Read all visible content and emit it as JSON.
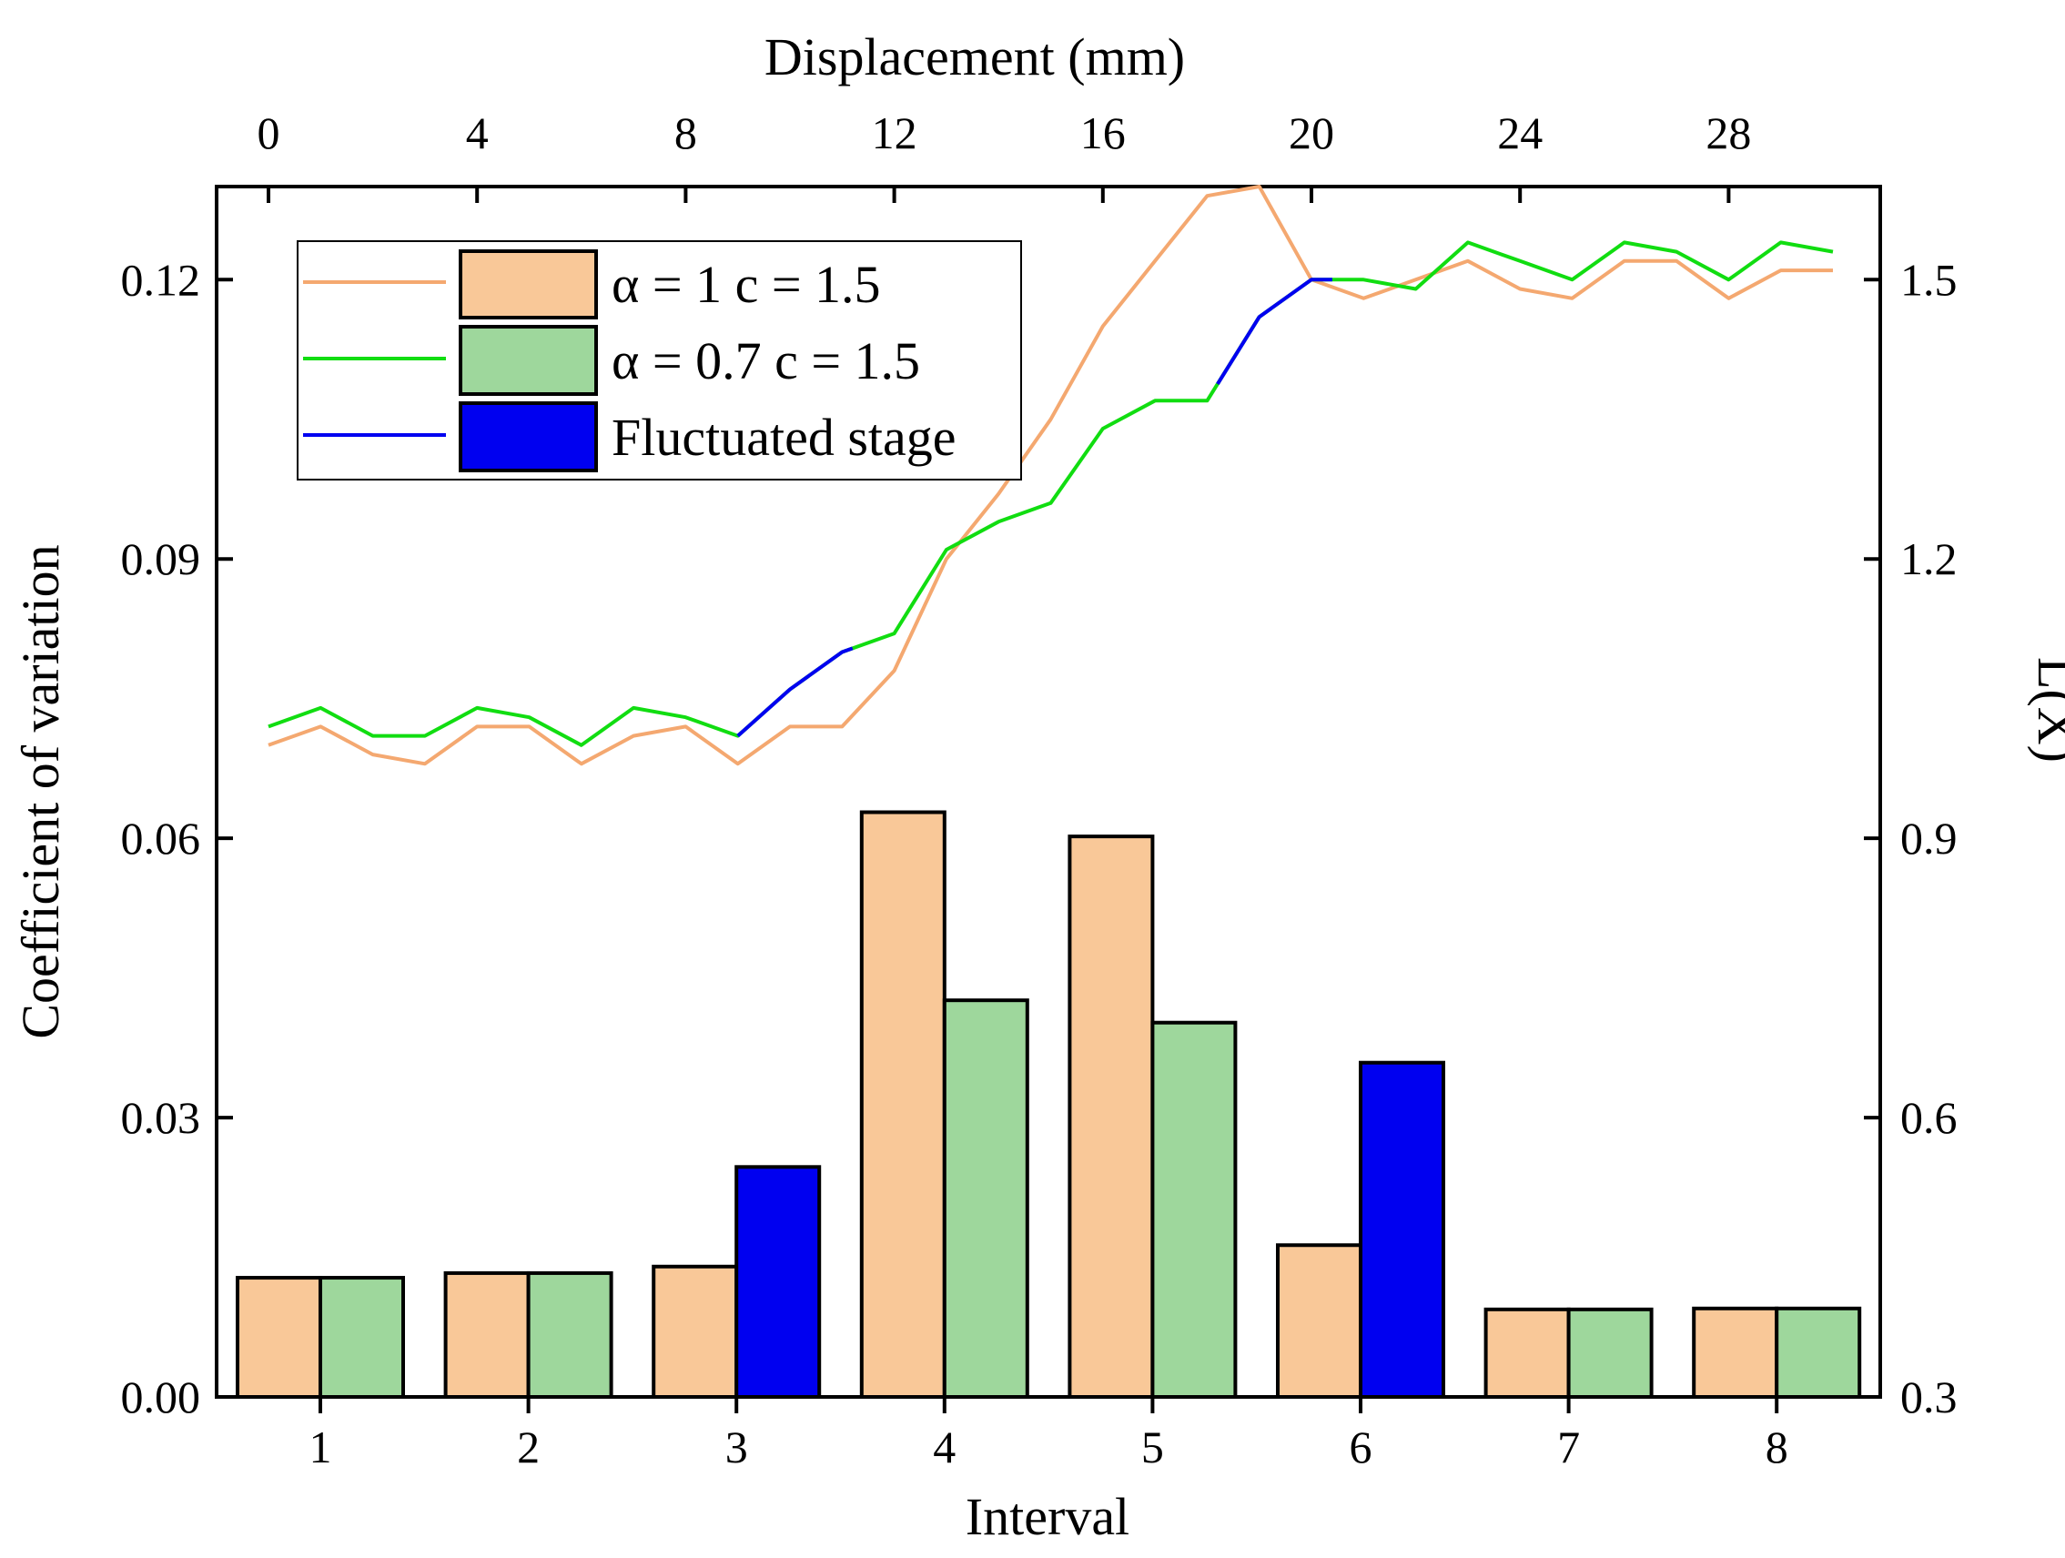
{
  "chart_data": {
    "type": "bar+line",
    "bottom_axis": {
      "label": "Interval",
      "categories": [
        "1",
        "2",
        "3",
        "4",
        "5",
        "6",
        "7",
        "8"
      ]
    },
    "top_axis": {
      "label": "Displacement (mm)",
      "range": [
        0,
        30
      ],
      "ticks": [
        "0",
        "4",
        "8",
        "12",
        "16",
        "20",
        "24",
        "28"
      ]
    },
    "left_axis": {
      "label": "Coefficient of variation",
      "range": [
        0,
        0.13
      ],
      "ticks": [
        "0.00",
        "0.03",
        "0.06",
        "0.09",
        "0.12"
      ]
    },
    "right_axis": {
      "label": "L(X)",
      "range": [
        0.3,
        1.6
      ],
      "ticks": [
        "0.3",
        "0.6",
        "0.9",
        "1.2",
        "1.5"
      ]
    },
    "bar_series": [
      {
        "name": "α = 1 c = 1.5",
        "color": "#F9C898",
        "values": [
          0.0128,
          0.0133,
          0.014,
          0.0628,
          0.0602,
          0.0163,
          0.0094,
          0.0095
        ]
      },
      {
        "name": "α = 0.7 c = 1.5",
        "color": "#9ED79C",
        "values": [
          0.0128,
          0.0133,
          0.0247,
          0.0426,
          0.0402,
          0.0359,
          0.0094,
          0.0095
        ],
        "fluctuated_intervals": [
          3,
          6
        ],
        "fluctuated_color": "#0000F0"
      }
    ],
    "line_series": [
      {
        "name": "α = 1 c = 1.5",
        "color": "#F4A870",
        "axis": "right",
        "x": [
          0,
          1,
          2,
          3,
          4,
          5,
          6,
          7,
          8,
          9,
          10,
          11,
          12,
          13,
          14,
          15,
          16,
          17,
          18,
          19,
          20,
          21,
          22,
          23,
          24,
          25,
          26,
          27,
          28,
          29,
          30
        ],
        "y": [
          1.0,
          1.02,
          0.99,
          0.98,
          1.02,
          1.02,
          0.98,
          1.01,
          1.02,
          0.98,
          1.02,
          1.02,
          1.08,
          1.2,
          1.27,
          1.35,
          1.45,
          1.52,
          1.59,
          1.6,
          1.5,
          1.48,
          1.5,
          1.52,
          1.49,
          1.48,
          1.52,
          1.52,
          1.48,
          1.51,
          1.51
        ]
      },
      {
        "name": "α = 0.7 c = 1.5",
        "color": "#11DD11",
        "axis": "right",
        "x": [
          0,
          1,
          2,
          3,
          4,
          5,
          6,
          7,
          8,
          9,
          10,
          11,
          12,
          13,
          14,
          15,
          16,
          17,
          18,
          19,
          20,
          21,
          22,
          23,
          24,
          25,
          26,
          27,
          28,
          29,
          30
        ],
        "y": [
          1.02,
          1.04,
          1.01,
          1.01,
          1.04,
          1.03,
          1.0,
          1.04,
          1.03,
          1.01,
          1.06,
          1.1,
          1.12,
          1.21,
          1.24,
          1.26,
          1.34,
          1.37,
          1.37,
          1.46,
          1.5,
          1.5,
          1.49,
          1.54,
          1.52,
          1.5,
          1.54,
          1.53,
          1.5,
          1.54,
          1.53
        ],
        "fluctuated_ranges": [
          [
            9,
            11.2
          ],
          [
            18.2,
            20.4
          ]
        ],
        "fluctuated_color": "#0000F0"
      }
    ],
    "legend": {
      "position": "top-left",
      "entries": [
        {
          "label": "α = 1 c = 1.5",
          "line_color": "#F4A870",
          "box_color": "#F9C898"
        },
        {
          "label": "α = 0.7 c = 1.5",
          "line_color": "#11DD11",
          "box_color": "#9ED79C"
        },
        {
          "label": "Fluctuated stage",
          "line_color": "#0000F0",
          "box_color": "#0000F0"
        }
      ]
    }
  }
}
